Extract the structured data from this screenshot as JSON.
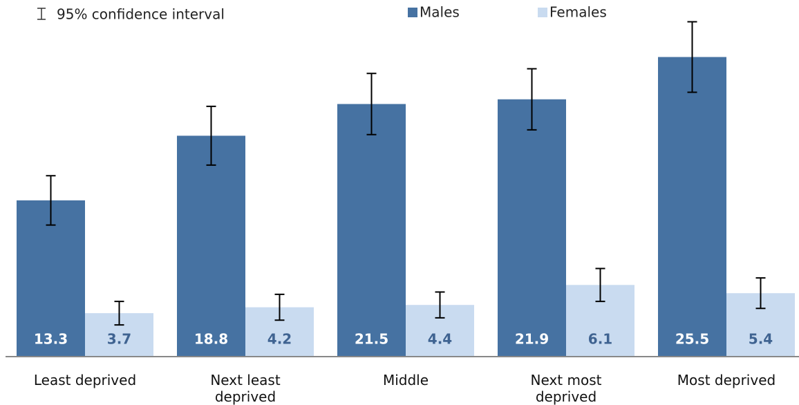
{
  "chart_data": {
    "type": "bar",
    "error_legend": "95% confidence interval",
    "categories": [
      "Least deprived",
      "Next least\ndeprived",
      "Middle",
      "Next most\ndeprived",
      "Most deprived"
    ],
    "series": [
      {
        "name": "Males",
        "color": "#4672a2",
        "label_color": "#ffffff",
        "values": [
          13.3,
          18.8,
          21.5,
          21.9,
          25.5
        ],
        "errors": [
          2.1,
          2.5,
          2.6,
          2.6,
          3.0
        ]
      },
      {
        "name": "Females",
        "color": "#c9dbf0",
        "label_color": "#3f6391",
        "values": [
          3.7,
          4.2,
          4.4,
          6.1,
          5.4
        ],
        "errors": [
          1.0,
          1.1,
          1.1,
          1.4,
          1.3
        ]
      }
    ],
    "ylim": [
      0,
      30
    ]
  }
}
